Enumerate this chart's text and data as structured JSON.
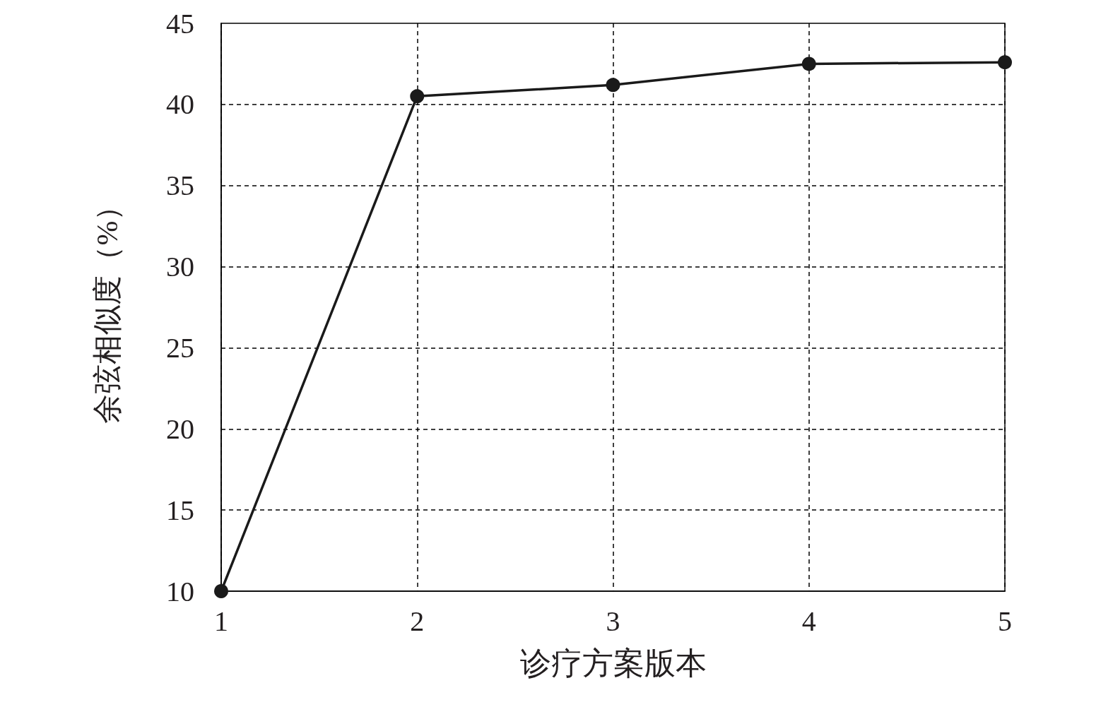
{
  "chart_data": {
    "type": "line",
    "xlabel": "诊疗方案版本",
    "ylabel": "余弦相似度（%）",
    "x": [
      1,
      2,
      3,
      4,
      5
    ],
    "series": [
      {
        "color": "#1a1a1a",
        "values": [
          10,
          40.5,
          41.2,
          42.5,
          42.6
        ]
      }
    ],
    "xlim": [
      1,
      5
    ],
    "xticks": [
      1,
      2,
      3,
      4,
      5
    ],
    "ylim": [
      10,
      45
    ],
    "yticks": [
      10,
      15,
      20,
      25,
      30,
      35,
      40,
      45
    ],
    "grid": true,
    "marker": "circle",
    "line_style": "solid"
  }
}
